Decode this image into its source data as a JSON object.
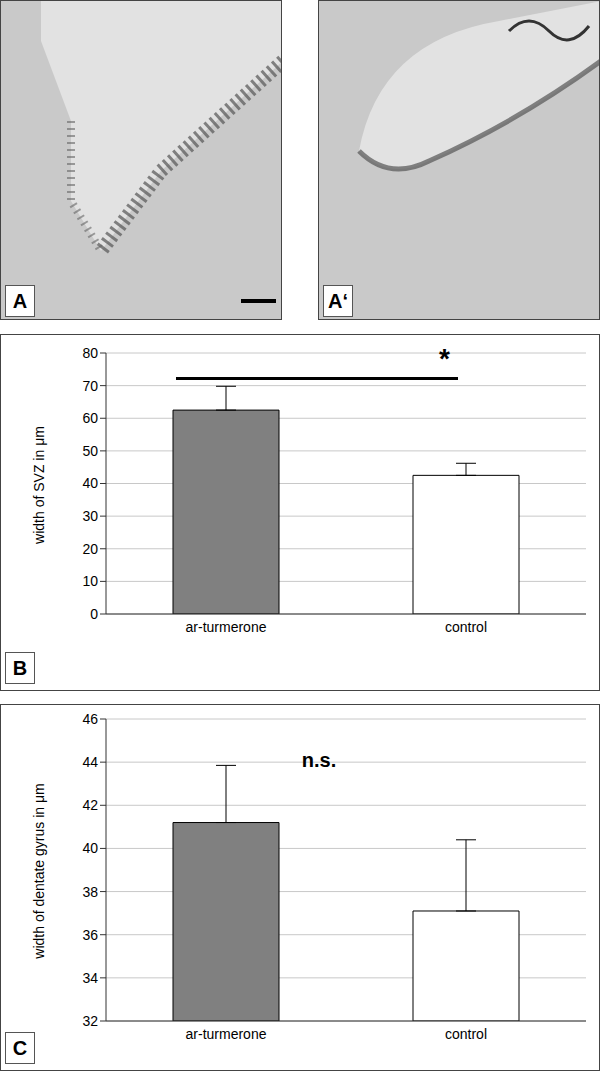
{
  "images": [
    {
      "label": "A"
    },
    {
      "label": "A‘"
    }
  ],
  "chart_data": [
    {
      "type": "bar",
      "label": "B",
      "y_label": "width of SVZ in μm",
      "categories": [
        "ar-turmerone",
        "control"
      ],
      "values": [
        62.5,
        42.5
      ],
      "errors": [
        7.3,
        3.7
      ],
      "colors": [
        "#808080",
        "#ffffff"
      ],
      "ylim": [
        0,
        80
      ],
      "yticks": [
        0,
        10,
        20,
        30,
        40,
        50,
        60,
        70,
        80
      ],
      "grid": true,
      "annotation": "*"
    },
    {
      "type": "bar",
      "label": "C",
      "y_label": "width of dentate gyrus in μm",
      "categories": [
        "ar-turmerone",
        "control"
      ],
      "values": [
        41.2,
        37.1
      ],
      "errors": [
        2.65,
        3.3
      ],
      "colors": [
        "#808080",
        "#ffffff"
      ],
      "ylim": [
        32,
        46
      ],
      "yticks": [
        32,
        34,
        36,
        38,
        40,
        42,
        44,
        46
      ],
      "grid": true,
      "annotation": "n.s."
    }
  ]
}
